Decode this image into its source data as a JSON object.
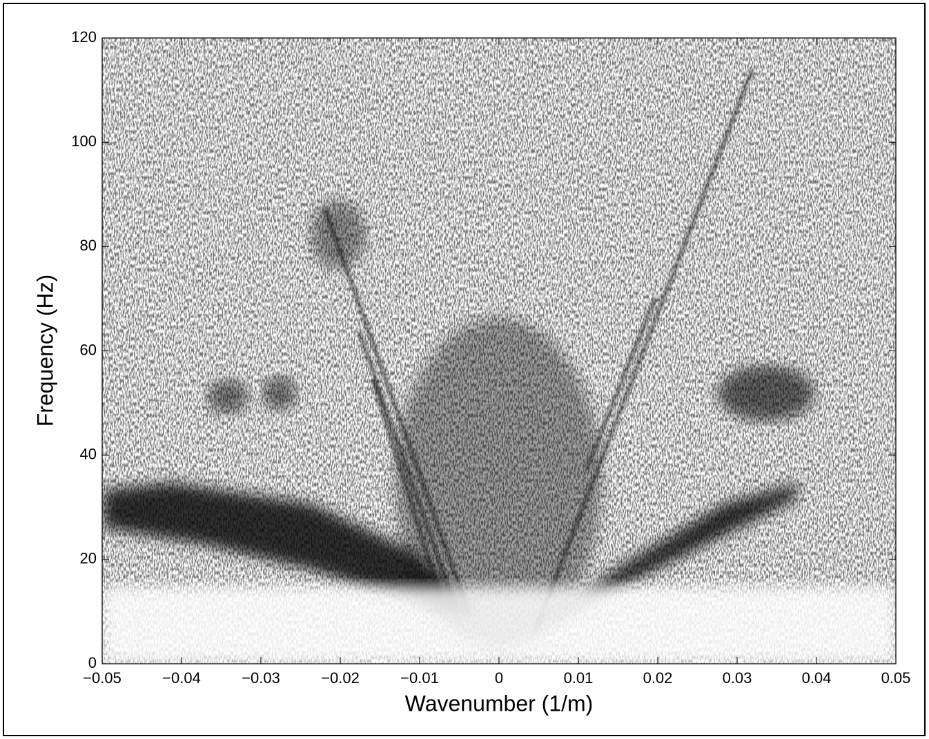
{
  "chart_data": {
    "type": "image",
    "x_label": "Wavenumber (1/m)",
    "y_label": "Frequency (Hz)",
    "xlim": [
      -0.05,
      0.05
    ],
    "xticks": [
      {
        "value": -0.05,
        "label": "−0.05"
      },
      {
        "value": -0.04,
        "label": "−0.04"
      },
      {
        "value": -0.03,
        "label": "−0.03"
      },
      {
        "value": -0.02,
        "label": "−0.02"
      },
      {
        "value": -0.01,
        "label": "−0.01"
      },
      0,
      0.01,
      0.02,
      0.03,
      0.04,
      0.05
    ],
    "ylim": [
      0,
      120
    ],
    "yticks": [
      0,
      20,
      40,
      60,
      80,
      100,
      120
    ]
  }
}
